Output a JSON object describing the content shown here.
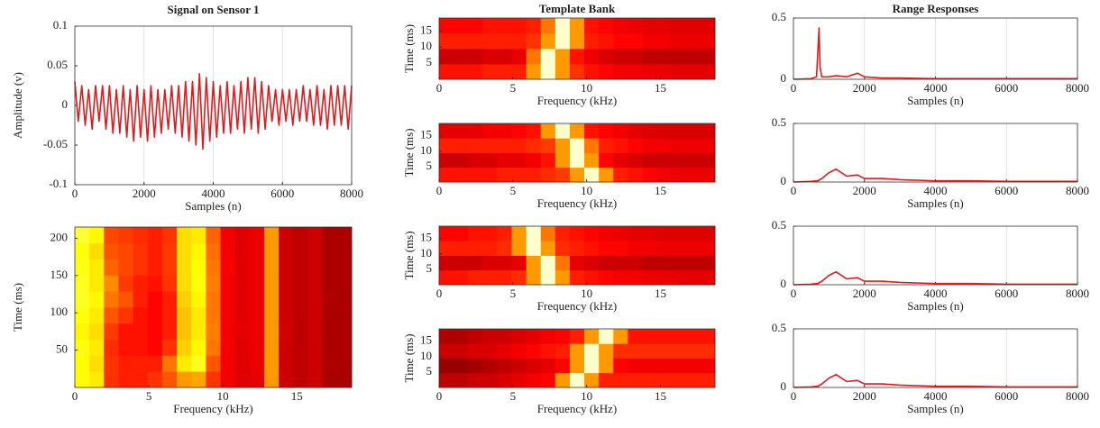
{
  "chart_data": [
    {
      "type": "line",
      "title": "Signal on Sensor 1",
      "xlabel": "Samples (n)",
      "ylabel": "Amplitude (v)",
      "color": "#e31a1c",
      "grid": true,
      "xlim": [
        0,
        8000
      ],
      "ylim": [
        -0.1,
        0.1
      ],
      "xticks": [
        0,
        2000,
        4000,
        6000,
        8000
      ],
      "yticks": [
        -0.1,
        -0.05,
        0,
        0.05,
        0.1
      ],
      "x": [
        0,
        100,
        200,
        300,
        400,
        500,
        600,
        700,
        800,
        900,
        1000,
        1100,
        1200,
        1300,
        1400,
        1500,
        1600,
        1700,
        1800,
        1900,
        2000,
        2100,
        2200,
        2300,
        2400,
        2500,
        2600,
        2700,
        2800,
        2900,
        3000,
        3100,
        3200,
        3300,
        3400,
        3500,
        3600,
        3700,
        3800,
        3900,
        4000,
        4100,
        4200,
        4300,
        4400,
        4500,
        4600,
        4700,
        4800,
        4900,
        5000,
        5100,
        5200,
        5300,
        5400,
        5500,
        5600,
        5700,
        5800,
        5900,
        6000,
        6100,
        6200,
        6300,
        6400,
        6500,
        6600,
        6700,
        6800,
        6900,
        7000,
        7100,
        7200,
        7300,
        7400,
        7500,
        7600,
        7700,
        7800,
        7900,
        8000
      ],
      "values": [
        0.03,
        -0.02,
        0.025,
        -0.025,
        0.02,
        -0.03,
        0.025,
        -0.02,
        0.025,
        -0.03,
        0.025,
        -0.035,
        0.02,
        -0.035,
        0.025,
        -0.04,
        0.02,
        -0.045,
        0.025,
        -0.04,
        0.02,
        -0.045,
        0.025,
        -0.04,
        0.02,
        -0.035,
        0.02,
        -0.03,
        0.025,
        -0.035,
        0.025,
        -0.04,
        0.03,
        -0.045,
        0.03,
        -0.05,
        0.04,
        -0.055,
        0.035,
        -0.045,
        0.03,
        -0.04,
        0.025,
        -0.035,
        0.03,
        -0.035,
        0.025,
        -0.03,
        0.03,
        -0.035,
        0.035,
        -0.03,
        0.035,
        -0.035,
        0.03,
        -0.03,
        0.025,
        -0.02,
        0.02,
        -0.025,
        0.02,
        -0.02,
        0.02,
        -0.025,
        0.02,
        -0.02,
        0.025,
        -0.02,
        0.02,
        -0.025,
        0.025,
        -0.025,
        0.02,
        -0.03,
        0.025,
        -0.025,
        0.025,
        -0.025,
        0.025,
        -0.03,
        0.025
      ]
    },
    {
      "type": "heatmap",
      "xlabel": "Frequency (kHz)",
      "ylabel": "Time (ms)",
      "colormap": "hot",
      "xlim": [
        0,
        18.7
      ],
      "ylim": [
        0,
        215
      ],
      "xticks": [
        0,
        5,
        10,
        15
      ],
      "yticks": [
        50,
        100,
        150,
        200
      ],
      "z": [
        [
          0.75,
          0.72,
          0.45,
          0.42,
          0.42,
          0.45,
          0.5,
          0.6,
          0.62,
          0.45,
          0.36,
          0.33,
          0.34,
          0.6,
          0.3,
          0.28,
          0.3,
          0.25,
          0.25
        ],
        [
          0.75,
          0.7,
          0.45,
          0.42,
          0.42,
          0.42,
          0.55,
          0.72,
          0.78,
          0.5,
          0.36,
          0.33,
          0.35,
          0.6,
          0.3,
          0.28,
          0.3,
          0.26,
          0.25
        ],
        [
          0.76,
          0.72,
          0.44,
          0.4,
          0.4,
          0.38,
          0.45,
          0.68,
          0.74,
          0.55,
          0.36,
          0.33,
          0.35,
          0.6,
          0.3,
          0.28,
          0.3,
          0.25,
          0.25
        ],
        [
          0.74,
          0.7,
          0.46,
          0.4,
          0.4,
          0.38,
          0.42,
          0.66,
          0.72,
          0.56,
          0.36,
          0.34,
          0.35,
          0.6,
          0.31,
          0.28,
          0.3,
          0.25,
          0.25
        ],
        [
          0.76,
          0.72,
          0.5,
          0.45,
          0.4,
          0.38,
          0.42,
          0.66,
          0.72,
          0.55,
          0.36,
          0.33,
          0.35,
          0.6,
          0.3,
          0.28,
          0.3,
          0.25,
          0.25
        ],
        [
          0.78,
          0.74,
          0.55,
          0.5,
          0.42,
          0.38,
          0.42,
          0.68,
          0.74,
          0.55,
          0.36,
          0.33,
          0.35,
          0.6,
          0.3,
          0.28,
          0.3,
          0.26,
          0.25
        ],
        [
          0.78,
          0.72,
          0.58,
          0.46,
          0.42,
          0.4,
          0.45,
          0.7,
          0.76,
          0.56,
          0.36,
          0.33,
          0.35,
          0.6,
          0.3,
          0.28,
          0.3,
          0.25,
          0.25
        ],
        [
          0.77,
          0.72,
          0.52,
          0.48,
          0.45,
          0.42,
          0.46,
          0.7,
          0.75,
          0.55,
          0.37,
          0.33,
          0.35,
          0.6,
          0.3,
          0.28,
          0.3,
          0.25,
          0.25
        ],
        [
          0.76,
          0.7,
          0.5,
          0.48,
          0.45,
          0.42,
          0.46,
          0.7,
          0.74,
          0.54,
          0.36,
          0.33,
          0.35,
          0.6,
          0.3,
          0.28,
          0.3,
          0.25,
          0.25
        ],
        [
          0.8,
          0.74,
          0.48,
          0.46,
          0.44,
          0.42,
          0.45,
          0.7,
          0.72,
          0.52,
          0.36,
          0.33,
          0.35,
          0.6,
          0.3,
          0.28,
          0.3,
          0.25,
          0.25
        ]
      ]
    },
    {
      "type": "heatmap",
      "title": "Template Bank",
      "xlabel": "Frequency (kHz)",
      "ylabel": "Time (ms)",
      "colormap": "hot",
      "xlim": [
        0,
        18.7
      ],
      "ylim": [
        0,
        19
      ],
      "xticks": [
        0,
        5,
        10,
        15
      ],
      "yticks": [
        5,
        10,
        15
      ],
      "z": [
        [
          0.4,
          0.4,
          0.4,
          0.42,
          0.42,
          0.42,
          0.6,
          0.95,
          0.6,
          0.45,
          0.4,
          0.38,
          0.36,
          0.36,
          0.35,
          0.35,
          0.34,
          0.34,
          0.34
        ],
        [
          0.3,
          0.3,
          0.3,
          0.32,
          0.32,
          0.34,
          0.55,
          0.95,
          0.6,
          0.4,
          0.35,
          0.32,
          0.3,
          0.3,
          0.28,
          0.28,
          0.28,
          0.28,
          0.28
        ],
        [
          0.42,
          0.42,
          0.42,
          0.42,
          0.42,
          0.42,
          0.45,
          0.6,
          0.95,
          0.6,
          0.42,
          0.4,
          0.38,
          0.38,
          0.36,
          0.36,
          0.35,
          0.35,
          0.35
        ],
        [
          0.38,
          0.38,
          0.38,
          0.4,
          0.4,
          0.4,
          0.42,
          0.55,
          0.95,
          0.6,
          0.4,
          0.38,
          0.36,
          0.35,
          0.34,
          0.34,
          0.33,
          0.33,
          0.33
        ]
      ]
    },
    {
      "type": "heatmap",
      "xlabel": "Frequency (kHz)",
      "ylabel": "Time (ms)",
      "colormap": "hot",
      "xlim": [
        0,
        18.7
      ],
      "ylim": [
        0,
        19
      ],
      "xticks": [
        0,
        5,
        10,
        15
      ],
      "yticks": [
        5,
        10,
        15
      ],
      "z": [
        [
          0.4,
          0.4,
          0.4,
          0.4,
          0.42,
          0.42,
          0.42,
          0.44,
          0.46,
          0.6,
          0.95,
          0.6,
          0.42,
          0.4,
          0.38,
          0.36,
          0.35,
          0.35,
          0.35
        ],
        [
          0.3,
          0.3,
          0.32,
          0.32,
          0.34,
          0.34,
          0.36,
          0.4,
          0.6,
          0.95,
          0.6,
          0.38,
          0.34,
          0.32,
          0.3,
          0.3,
          0.3,
          0.3,
          0.3
        ],
        [
          0.42,
          0.42,
          0.42,
          0.42,
          0.42,
          0.42,
          0.44,
          0.46,
          0.6,
          0.95,
          0.55,
          0.42,
          0.4,
          0.38,
          0.36,
          0.36,
          0.35,
          0.35,
          0.35
        ],
        [
          0.34,
          0.34,
          0.34,
          0.36,
          0.36,
          0.38,
          0.4,
          0.6,
          0.95,
          0.6,
          0.4,
          0.38,
          0.36,
          0.34,
          0.33,
          0.32,
          0.32,
          0.32,
          0.32
        ]
      ]
    },
    {
      "type": "heatmap",
      "xlabel": "Frequency (kHz)",
      "ylabel": "Time (ms)",
      "colormap": "hot",
      "xlim": [
        0,
        18.7
      ],
      "ylim": [
        0,
        19
      ],
      "xticks": [
        0,
        5,
        10,
        15
      ],
      "yticks": [
        5,
        10,
        15
      ],
      "z": [
        [
          0.4,
          0.4,
          0.42,
          0.42,
          0.42,
          0.44,
          0.6,
          0.95,
          0.6,
          0.42,
          0.4,
          0.38,
          0.36,
          0.36,
          0.35,
          0.35,
          0.34,
          0.34,
          0.34
        ],
        [
          0.3,
          0.3,
          0.3,
          0.32,
          0.32,
          0.34,
          0.6,
          0.95,
          0.55,
          0.34,
          0.32,
          0.3,
          0.3,
          0.3,
          0.28,
          0.28,
          0.28,
          0.28,
          0.28
        ],
        [
          0.42,
          0.42,
          0.42,
          0.42,
          0.44,
          0.6,
          0.95,
          0.6,
          0.44,
          0.42,
          0.4,
          0.38,
          0.38,
          0.36,
          0.36,
          0.35,
          0.35,
          0.35,
          0.35
        ],
        [
          0.38,
          0.38,
          0.4,
          0.4,
          0.42,
          0.6,
          0.95,
          0.55,
          0.42,
          0.4,
          0.38,
          0.36,
          0.35,
          0.34,
          0.34,
          0.33,
          0.33,
          0.33,
          0.33
        ]
      ]
    },
    {
      "type": "heatmap",
      "xlabel": "Frequency (kHz)",
      "ylabel": "Time (ms)",
      "colormap": "hot",
      "xlim": [
        0,
        18.7
      ],
      "ylim": [
        0,
        19
      ],
      "xticks": [
        0,
        5,
        10,
        15
      ],
      "yticks": [
        5,
        10,
        15
      ],
      "z": [
        [
          0.28,
          0.28,
          0.3,
          0.3,
          0.32,
          0.34,
          0.36,
          0.38,
          0.6,
          0.95,
          0.6,
          0.42,
          0.42,
          0.42,
          0.42,
          0.42,
          0.42,
          0.42,
          0.42
        ],
        [
          0.22,
          0.22,
          0.24,
          0.26,
          0.28,
          0.3,
          0.32,
          0.34,
          0.38,
          0.6,
          0.95,
          0.6,
          0.38,
          0.36,
          0.36,
          0.36,
          0.36,
          0.36,
          0.36
        ],
        [
          0.3,
          0.3,
          0.32,
          0.32,
          0.34,
          0.36,
          0.38,
          0.4,
          0.42,
          0.6,
          0.95,
          0.6,
          0.44,
          0.44,
          0.44,
          0.44,
          0.44,
          0.44,
          0.44
        ],
        [
          0.26,
          0.26,
          0.28,
          0.3,
          0.3,
          0.32,
          0.34,
          0.36,
          0.38,
          0.42,
          0.6,
          0.95,
          0.6,
          0.4,
          0.4,
          0.4,
          0.4,
          0.4,
          0.4
        ]
      ]
    },
    {
      "type": "line",
      "title": "Range Responses",
      "xlabel": "Samples (n)",
      "color": "#e31a1c",
      "grid": true,
      "xlim": [
        0,
        8000
      ],
      "ylim": [
        0,
        0.5
      ],
      "xticks": [
        0,
        2000,
        4000,
        6000,
        8000
      ],
      "yticks": [
        0,
        0.5
      ],
      "x": [
        0,
        500,
        650,
        700,
        720,
        750,
        800,
        1000,
        1200,
        1500,
        1800,
        2000,
        2500,
        3000,
        4000,
        5000,
        6000,
        7000,
        8000
      ],
      "values": [
        0,
        0.005,
        0.02,
        0.3,
        0.42,
        0.1,
        0.02,
        0.02,
        0.03,
        0.02,
        0.05,
        0.02,
        0.01,
        0.01,
        0.005,
        0.005,
        0.005,
        0.005,
        0.005
      ]
    },
    {
      "type": "line",
      "xlabel": "Samples (n)",
      "color": "#e31a1c",
      "grid": true,
      "xlim": [
        0,
        8000
      ],
      "ylim": [
        0,
        0.5
      ],
      "xticks": [
        0,
        2000,
        4000,
        6000,
        8000
      ],
      "yticks": [
        0,
        0.5
      ],
      "x": [
        0,
        500,
        650,
        700,
        720,
        750,
        800,
        1000,
        1200,
        1500,
        1800,
        2000,
        2500,
        3000,
        4000,
        5000,
        6000,
        7000,
        8000
      ],
      "values": [
        0,
        0.005,
        0.01,
        0.01,
        0.02,
        0.02,
        0.03,
        0.08,
        0.11,
        0.05,
        0.06,
        0.03,
        0.03,
        0.02,
        0.01,
        0.01,
        0.005,
        0.005,
        0.005
      ]
    },
    {
      "type": "line",
      "xlabel": "Samples (n)",
      "color": "#e31a1c",
      "grid": true,
      "xlim": [
        0,
        8000
      ],
      "ylim": [
        0,
        0.5
      ],
      "xticks": [
        0,
        2000,
        4000,
        6000,
        8000
      ],
      "yticks": [
        0,
        0.5
      ],
      "x": [
        0,
        500,
        650,
        700,
        720,
        750,
        800,
        1000,
        1200,
        1500,
        1800,
        2000,
        2500,
        3000,
        4000,
        5000,
        6000,
        7000,
        8000
      ],
      "values": [
        0,
        0.005,
        0.01,
        0.01,
        0.02,
        0.02,
        0.03,
        0.08,
        0.11,
        0.05,
        0.06,
        0.03,
        0.03,
        0.02,
        0.01,
        0.01,
        0.005,
        0.005,
        0.005
      ]
    },
    {
      "type": "line",
      "xlabel": "Samples (n)",
      "color": "#e31a1c",
      "grid": true,
      "xlim": [
        0,
        8000
      ],
      "ylim": [
        0,
        0.5
      ],
      "xticks": [
        0,
        2000,
        4000,
        6000,
        8000
      ],
      "yticks": [
        0,
        0.5
      ],
      "x": [
        0,
        500,
        650,
        700,
        720,
        750,
        800,
        1000,
        1200,
        1500,
        1800,
        2000,
        2500,
        3000,
        4000,
        5000,
        6000,
        7000,
        8000
      ],
      "values": [
        0,
        0.005,
        0.01,
        0.01,
        0.02,
        0.02,
        0.03,
        0.08,
        0.11,
        0.05,
        0.06,
        0.03,
        0.03,
        0.02,
        0.01,
        0.01,
        0.005,
        0.005,
        0.005
      ]
    }
  ]
}
